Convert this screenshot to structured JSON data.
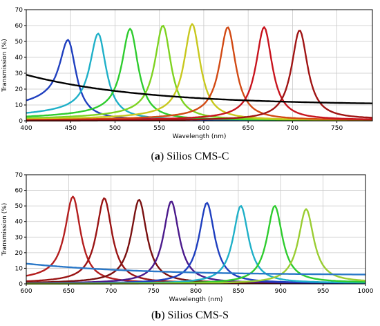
{
  "chart_data": [
    {
      "type": "line",
      "caption_letter": "a",
      "caption_text": "Silios CMS-C",
      "xlabel": "Wavelength (nm)",
      "ylabel": "Transmission (%)",
      "xlim": [
        400,
        790
      ],
      "ylim": [
        0,
        70
      ],
      "xticks": [
        400,
        450,
        500,
        550,
        600,
        650,
        700,
        750
      ],
      "yticks": [
        0,
        10,
        20,
        30,
        40,
        50,
        60,
        70
      ],
      "grid": true,
      "series": [
        {
          "color": "#1f3fbf",
          "peak_x": 447,
          "peak_y": 51,
          "base_left": 16,
          "base_right": 0.5
        },
        {
          "color": "#1fb0c8",
          "peak_x": 481,
          "peak_y": 55,
          "base_left": 8,
          "base_right": 0.5
        },
        {
          "color": "#2ecc2e",
          "peak_x": 517,
          "peak_y": 58,
          "base_left": 6,
          "base_right": 0.5
        },
        {
          "color": "#7ed321",
          "peak_x": 554,
          "peak_y": 60,
          "base_left": 5,
          "base_right": 0.5
        },
        {
          "color": "#c8c81e",
          "peak_x": 587,
          "peak_y": 61,
          "base_left": 4,
          "base_right": 0.5
        },
        {
          "color": "#d24a14",
          "peak_x": 627,
          "peak_y": 59,
          "base_left": 3,
          "base_right": 0.5
        },
        {
          "color": "#c8141e",
          "peak_x": 668,
          "peak_y": 59,
          "base_left": 2,
          "base_right": 0.5
        },
        {
          "color": "#a01414",
          "peak_x": 708,
          "peak_y": 57,
          "base_left": 1,
          "base_right": 1
        },
        {
          "color": "#000000",
          "broadband": true,
          "start_y": 29,
          "end_y": 11
        }
      ]
    },
    {
      "type": "line",
      "caption_letter": "b",
      "caption_text": "Silios CMS-S",
      "xlabel": "Wavelength (nm)",
      "ylabel": "Transmission (%)",
      "xlim": [
        600,
        1000
      ],
      "ylim": [
        0,
        70
      ],
      "xticks": [
        600,
        650,
        700,
        750,
        800,
        850,
        900,
        950,
        1000
      ],
      "yticks": [
        0,
        10,
        20,
        30,
        40,
        50,
        60,
        70
      ],
      "grid": true,
      "series": [
        {
          "color": "#b41e1e",
          "peak_x": 655,
          "peak_y": 56,
          "base_left": 5,
          "base_right": 0.5
        },
        {
          "color": "#9a1414",
          "peak_x": 692,
          "peak_y": 55,
          "base_left": 2,
          "base_right": 0.5
        },
        {
          "color": "#7a1010",
          "peak_x": 733,
          "peak_y": 54,
          "base_left": 1.5,
          "base_right": 0.5
        },
        {
          "color": "#4b1a8c",
          "peak_x": 771,
          "peak_y": 53,
          "base_left": 1,
          "base_right": 0.5
        },
        {
          "color": "#1f3fbf",
          "peak_x": 813,
          "peak_y": 52,
          "base_left": 0.8,
          "base_right": 0.5
        },
        {
          "color": "#1fb0c8",
          "peak_x": 853,
          "peak_y": 50,
          "base_left": 0.5,
          "base_right": 0.5
        },
        {
          "color": "#2ecc2e",
          "peak_x": 893,
          "peak_y": 50,
          "base_left": 0.5,
          "base_right": 0.8
        },
        {
          "color": "#9acd32",
          "peak_x": 930,
          "peak_y": 48,
          "base_left": 0.5,
          "base_right": 1
        },
        {
          "color": "#2a78c8",
          "broadband": true,
          "start_y": 13,
          "end_y": 6
        }
      ]
    }
  ]
}
